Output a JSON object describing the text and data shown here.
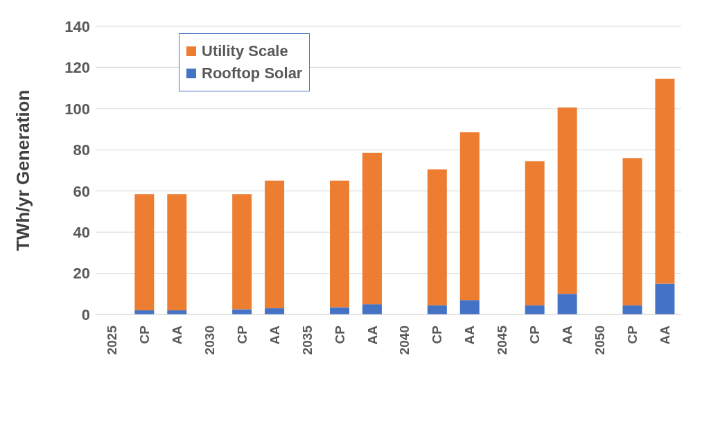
{
  "chart_data": {
    "type": "bar",
    "stacked": true,
    "ylabel": "TWh/yr Generation",
    "categories": [
      "2025",
      "CP",
      "AA",
      "2030",
      "CP",
      "AA",
      "2035",
      "CP",
      "AA",
      "2040",
      "CP",
      "AA",
      "2045",
      "CP",
      "AA",
      "2050",
      "CP",
      "AA"
    ],
    "series": [
      {
        "name": "Rooftop Solar",
        "color": "#4472c4",
        "values": [
          null,
          2,
          2,
          null,
          2.5,
          3,
          null,
          3.5,
          5,
          null,
          4.5,
          7,
          null,
          4.5,
          10,
          null,
          4.5,
          15
        ]
      },
      {
        "name": "Utility Scale",
        "color": "#ed7d31",
        "values": [
          null,
          56.5,
          56.5,
          null,
          56,
          62,
          null,
          61.5,
          73.5,
          null,
          66,
          81.5,
          null,
          70,
          90.5,
          null,
          71.5,
          99.5
        ]
      }
    ],
    "ylim": [
      0,
      140
    ],
    "yticks": [
      0,
      20,
      40,
      60,
      80,
      100,
      120,
      140
    ],
    "grid": "y",
    "legend": "top left"
  }
}
